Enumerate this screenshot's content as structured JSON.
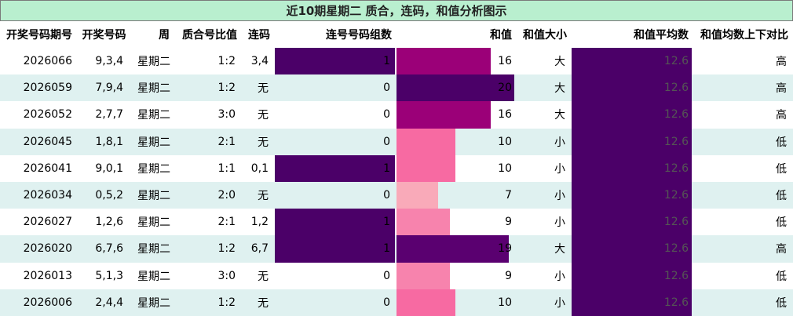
{
  "table": {
    "title": "近10期星期二 质合，连码，和值分析图示",
    "header": [
      "开奖号码期号",
      "开奖号码",
      "周",
      "质合号比值",
      "连码",
      "连号号码组数",
      "和值",
      "和值大小",
      "和值平均数",
      "和值均数上下对比"
    ],
    "rows": [
      [
        2026066,
        "9,3,4",
        "星期二",
        "1:2",
        "3,4",
        1,
        16,
        "大",
        12.6,
        "高"
      ],
      [
        2026059,
        "7,9,4",
        "星期二",
        "1:2",
        "无",
        0,
        20,
        "大",
        12.6,
        "高"
      ],
      [
        2026052,
        "2,7,7",
        "星期二",
        "3:0",
        "无",
        0,
        16,
        "大",
        12.6,
        "高"
      ],
      [
        2026045,
        "1,8,1",
        "星期二",
        "2:1",
        "无",
        0,
        10,
        "小",
        12.6,
        "低"
      ],
      [
        2026041,
        "9,0,1",
        "星期二",
        "1:1",
        "0,1",
        1,
        10,
        "小",
        12.6,
        "低"
      ],
      [
        2026034,
        "0,5,2",
        "星期二",
        "2:0",
        "无",
        0,
        7,
        "小",
        12.6,
        "低"
      ],
      [
        2026027,
        "1,2,6",
        "星期二",
        "2:1",
        "1,2",
        1,
        9,
        "小",
        12.6,
        "低"
      ],
      [
        2026020,
        "6,7,6",
        "星期二",
        "1:2",
        "6,7",
        1,
        19,
        "大",
        12.6,
        "高"
      ],
      [
        2026013,
        "5,1,3",
        "星期二",
        "3:0",
        "无",
        0,
        9,
        "小",
        12.6,
        "低"
      ],
      [
        2026006,
        "2,4,4",
        "星期二",
        "1:2",
        "无",
        0,
        10,
        "小",
        12.6,
        "低"
      ]
    ],
    "styles": {
      "title_bg": "#b9efcf",
      "stripe": "#dff1f0",
      "link_bar": "#4b0068",
      "avg_bar": "#4b0068",
      "sum_bar_colors": [
        "#9b0078",
        "#4b0068",
        "#9b0078",
        "#f76aa2",
        "#f76aa2",
        "#f9aab9",
        "#f783ad",
        "#5a0070",
        "#f783ad",
        "#f76aa2"
      ]
    }
  }
}
